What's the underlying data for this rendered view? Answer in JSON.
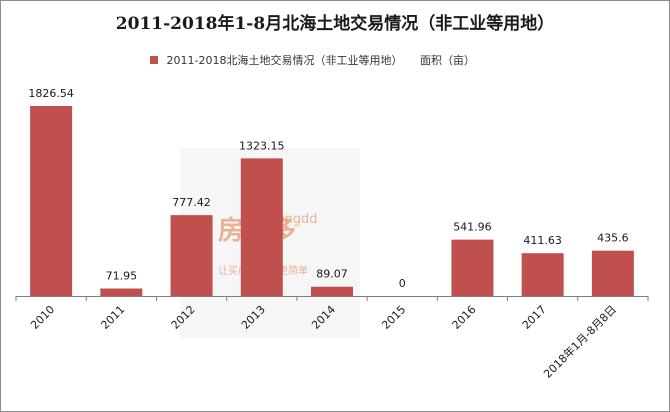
{
  "chart_data": {
    "type": "bar",
    "title": "2011-2018年1-8月北海土地交易情况（非工业等用地）",
    "legend": {
      "label": "2011-2018北海土地交易情况（非工业等用地）",
      "suffix": "面积（亩）",
      "position": "top"
    },
    "categories": [
      "2010",
      "2011",
      "2012",
      "2013",
      "2014",
      "2015",
      "2016",
      "2017",
      "2018年1月-8月8日"
    ],
    "series": [
      {
        "name": "2011-2018北海土地交易情况（非工业等用地）",
        "values": [
          1826.54,
          71.95,
          777.42,
          1323.15,
          89.07,
          0,
          541.96,
          411.63,
          435.6
        ],
        "labels": [
          "1826.54",
          "71.95",
          "777.42",
          "1323.15",
          "89.07",
          "0",
          "541.96",
          "411.63",
          "435.6"
        ]
      }
    ],
    "ylim": [
      0,
      1826.54
    ],
    "grid": false,
    "y_axis_visible": false,
    "bar_color": "#c0504d"
  },
  "watermark": {
    "logo": "房多多",
    "brand": "fangdd",
    "slogan": "让买房，变得更简单"
  },
  "colors": {
    "bar": "#c0504d",
    "axis": "#7f7f7f"
  }
}
